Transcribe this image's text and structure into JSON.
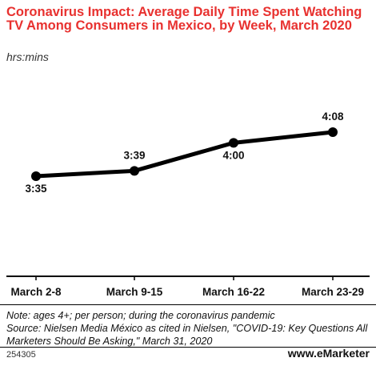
{
  "header": {
    "title": "Coronavirus Impact: Average Daily Time Spent Watching TV Among Consumers in Mexico, by Week, March 2020",
    "subtitle": "hrs:mins"
  },
  "chart_data": {
    "type": "line",
    "categories": [
      "March 2-8",
      "March 9-15",
      "March 16-22",
      "March 23-29"
    ],
    "x": [
      "March 2-8",
      "March 9-15",
      "March 16-22",
      "March 23-29"
    ],
    "series": [
      {
        "values": [
          215,
          219,
          240,
          248
        ],
        "labels": [
          "3:35",
          "3:39",
          "4:00",
          "4:08"
        ]
      }
    ],
    "grid": false
  },
  "footer": {
    "note": "Note: ages 4+; per person; during the coronavirus pandemic",
    "source": "Source: Nielsen Media México as cited in Nielsen, \"COVID-19: Key Questions All Marketers Should Be Asking,\" March 31, 2020",
    "chart_id": "254305",
    "brand": "eMarketer",
    "brand_prefix": "www."
  }
}
